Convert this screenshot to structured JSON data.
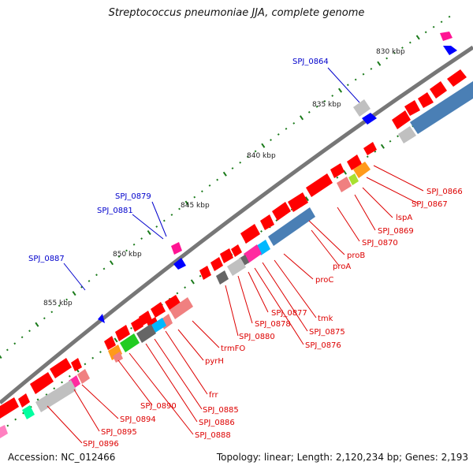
{
  "title": "Streptococcus pneumoniae JJA, complete genome",
  "footer": {
    "accession": "Accession: NC_012466",
    "topology": "Topology: linear; Length: 2,120,234 bp; Genes: 2,193"
  },
  "colors": {
    "backbone": "#7a7a7a",
    "gene_red": "#ff0000",
    "label_red": "#dd0000",
    "label_blue": "#0000cc",
    "tick_green": "#1a7a1a",
    "steel_blue": "#4a7fb5",
    "gray": "#c0c0c0",
    "dark_gray": "#666666",
    "salmon": "#f08080",
    "magenta": "#ff2ba0",
    "cyan": "#00b8ff",
    "green": "#22cc22",
    "orange": "#ff9a1a",
    "light_green": "#a8e030",
    "aqua": "#00ffa0",
    "pink": "#ff80c0",
    "blue": "#0000ff"
  },
  "ruler": [
    {
      "label": "830 kbp"
    },
    {
      "label": "835 kbp"
    },
    {
      "label": "840 kbp"
    },
    {
      "label": "845 kbp"
    },
    {
      "label": "850 kbp"
    },
    {
      "label": "855 kbp"
    }
  ],
  "labels_red": [
    "SPJ_0866",
    "SPJ_0867",
    "lspA",
    "SPJ_0869",
    "SPJ_0870",
    "proB",
    "proA",
    "proC",
    "tmk",
    "SPJ_0875",
    "SPJ_0876",
    "SPJ_0877",
    "SPJ_0878",
    "SPJ_0880",
    "trmFO",
    "pyrH",
    "frr",
    "SPJ_0885",
    "SPJ_0886",
    "SPJ_0888",
    "SPJ_0890",
    "SPJ_0894",
    "SPJ_0895",
    "SPJ_0896"
  ],
  "labels_blue": [
    "SPJ_0864",
    "SPJ_0879",
    "SPJ_0881",
    "SPJ_0887"
  ]
}
